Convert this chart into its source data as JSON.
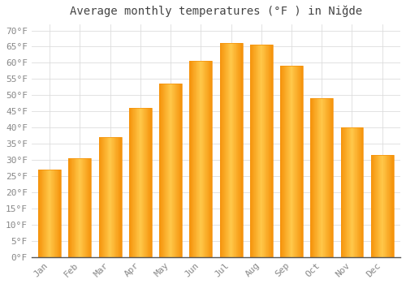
{
  "title": "Average monthly temperatures (°F ) in Niğde",
  "months": [
    "Jan",
    "Feb",
    "Mar",
    "Apr",
    "May",
    "Jun",
    "Jul",
    "Aug",
    "Sep",
    "Oct",
    "Nov",
    "Dec"
  ],
  "values": [
    27,
    30.5,
    37,
    46,
    53.5,
    60.5,
    66,
    65.5,
    59,
    49,
    40,
    31.5
  ],
  "bar_color_center": "#FFC84A",
  "bar_color_edge": "#F5920A",
  "background_color": "#FFFFFF",
  "grid_color": "#DDDDDD",
  "ylim": [
    0,
    72
  ],
  "yticks": [
    0,
    5,
    10,
    15,
    20,
    25,
    30,
    35,
    40,
    45,
    50,
    55,
    60,
    65,
    70
  ],
  "title_fontsize": 10,
  "tick_fontsize": 8,
  "bar_width": 0.75,
  "tick_color": "#888888",
  "spine_color": "#555555"
}
